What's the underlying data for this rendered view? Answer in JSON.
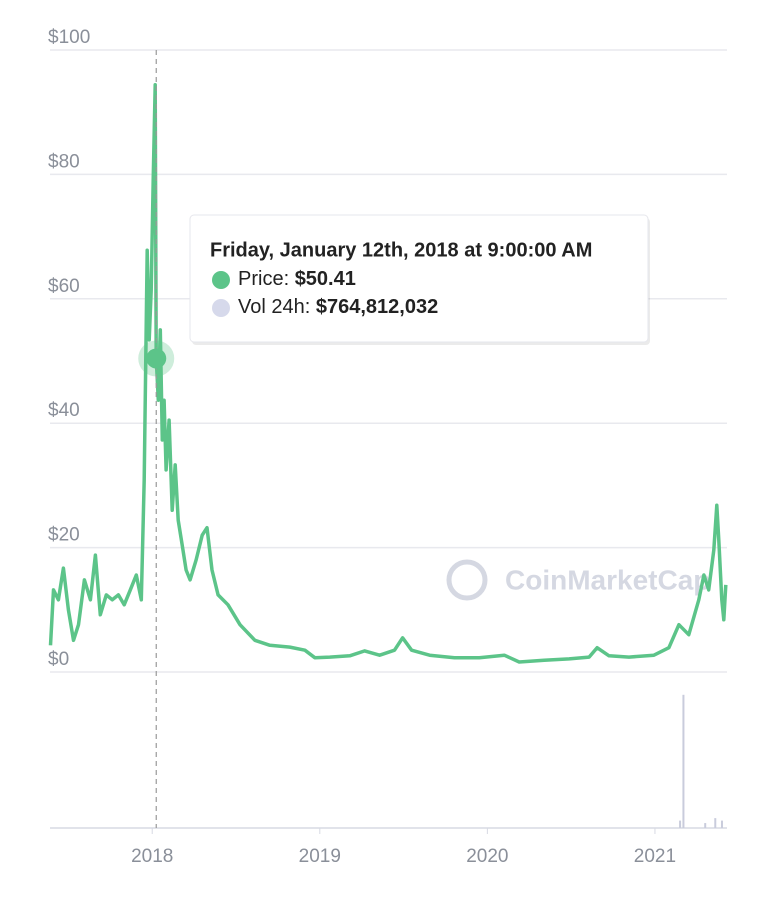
{
  "chart_data": {
    "type": "line",
    "xlim": [
      2017.39,
      2021.43
    ],
    "xticks": [
      2018,
      2019,
      2020,
      2021
    ],
    "ylim": [
      0,
      100
    ],
    "yticks": [
      {
        "value": 0,
        "label": "$0"
      },
      {
        "value": 20,
        "label": "$20"
      },
      {
        "value": 40,
        "label": "$40"
      },
      {
        "value": 60,
        "label": "$60"
      },
      {
        "value": 80,
        "label": "$80"
      },
      {
        "value": 100,
        "label": "$100"
      }
    ],
    "y2lim": [
      0,
      60000000000
    ],
    "grid": true,
    "watermark": "CoinMarketCap",
    "series": [
      {
        "color": "#5cc489",
        "x": [
          2017.393,
          2017.411,
          2017.44,
          2017.47,
          2017.5,
          2017.53,
          2017.56,
          2017.595,
          2017.631,
          2017.661,
          2017.69,
          2017.726,
          2017.762,
          2017.798,
          2017.833,
          2017.869,
          2017.905,
          2017.935,
          2017.952,
          2017.97,
          2017.982,
          2017.994,
          2018.006,
          2018.018,
          2018.024,
          2018.036,
          2018.048,
          2018.06,
          2018.071,
          2018.083,
          2018.101,
          2018.119,
          2018.137,
          2018.155,
          2018.179,
          2018.202,
          2018.226,
          2018.262,
          2018.298,
          2018.327,
          2018.357,
          2018.393,
          2018.452,
          2018.524,
          2018.613,
          2018.702,
          2018.821,
          2018.911,
          2018.97,
          2019.06,
          2019.179,
          2019.268,
          2019.357,
          2019.446,
          2019.494,
          2019.548,
          2019.655,
          2019.804,
          2019.952,
          2020.101,
          2020.19,
          2020.339,
          2020.488,
          2020.607,
          2020.655,
          2020.726,
          2020.845,
          2020.994,
          2021.083,
          2021.143,
          2021.202,
          2021.262,
          2021.292,
          2021.321,
          2021.351,
          2021.369,
          2021.381,
          2021.399,
          2021.411,
          2021.423
        ],
        "values": [
          4.3,
          13.2,
          11.6,
          16.7,
          10,
          5.1,
          7.6,
          14.8,
          11.6,
          18.8,
          9.2,
          12.4,
          11.6,
          12.4,
          10.8,
          13.2,
          15.6,
          11.6,
          30.9,
          67.8,
          53.4,
          61.4,
          79.1,
          94.4,
          50.5,
          43.7,
          55,
          37.3,
          43.7,
          32.5,
          40.5,
          26,
          33.3,
          24.4,
          20.4,
          16.4,
          14.8,
          18,
          22,
          23.2,
          16.4,
          12.4,
          10.8,
          7.6,
          5.1,
          4.3,
          4,
          3.5,
          2.3,
          2.4,
          2.6,
          3.4,
          2.7,
          3.5,
          5.5,
          3.5,
          2.7,
          2.3,
          2.3,
          2.7,
          1.6,
          1.9,
          2.1,
          2.4,
          3.9,
          2.6,
          2.4,
          2.7,
          3.9,
          7.6,
          6,
          11.6,
          15.6,
          13.2,
          19.6,
          26.8,
          21.2,
          11.6,
          8.4,
          14
        ]
      },
      {
        "type": "bar",
        "axis": "y2",
        "color": "#c9ccdc",
        "x": [
          2021.15,
          2021.17,
          2021.3,
          2021.36,
          2021.4
        ],
        "values": [
          3000000000,
          54000000000,
          2000000000,
          4000000000,
          3000000000
        ]
      }
    ],
    "tooltip": {
      "x": 2018.024,
      "title": "Friday, January 12th, 2018 at 9:00:00 AM",
      "items": [
        {
          "label": "Price:",
          "value": 50.41,
          "value_label": "$50.41",
          "color": "#5cc489"
        },
        {
          "label": "Vol 24h:",
          "value": 764812032,
          "value_label": "$764,812,032",
          "color": "#d6d9eb"
        }
      ]
    }
  }
}
